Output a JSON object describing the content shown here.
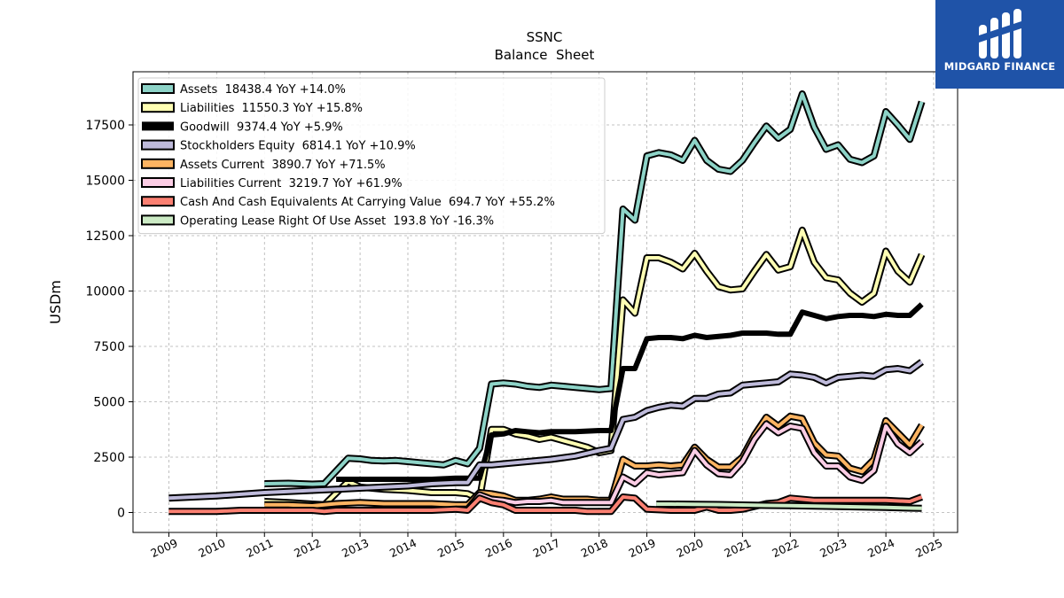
{
  "brand": {
    "name": "MIDGARD FINANCE",
    "bg_color": "#1f53a8"
  },
  "chart_data": {
    "type": "line",
    "title": "SSNC",
    "subtitle": "Balance  Sheet",
    "ylabel": "USDm",
    "xlabel": "",
    "xlim": [
      2008.25,
      2025.5
    ],
    "ylim": [
      -900,
      19900
    ],
    "x_ticks": [
      2009,
      2010,
      2011,
      2012,
      2013,
      2014,
      2015,
      2016,
      2017,
      2018,
      2019,
      2020,
      2021,
      2022,
      2023,
      2024,
      2025
    ],
    "x_tick_labels": [
      "2009",
      "2010",
      "2011",
      "2012",
      "2013",
      "2014",
      "2015",
      "2016",
      "2017",
      "2018",
      "2019",
      "2020",
      "2021",
      "2022",
      "2023",
      "2024",
      "2025"
    ],
    "y_ticks": [
      0,
      2500,
      5000,
      7500,
      10000,
      12500,
      15000,
      17500
    ],
    "y_tick_labels": [
      "0",
      "2500",
      "5000",
      "7500",
      "10000",
      "12500",
      "15000",
      "17500"
    ],
    "grid": true,
    "legend_position": "top-left",
    "series": [
      {
        "name": "Assets  18438.4 YoY +14.0%",
        "color": "#8dd3c7",
        "width": 4,
        "x": [
          2011.0,
          2011.5,
          2012.0,
          2012.25,
          2012.75,
          2013.0,
          2013.25,
          2013.5,
          2013.75,
          2014.0,
          2014.25,
          2014.5,
          2014.75,
          2015.0,
          2015.25,
          2015.5,
          2015.75,
          2016.0,
          2016.25,
          2016.5,
          2016.75,
          2017.0,
          2017.25,
          2017.5,
          2017.75,
          2018.0,
          2018.25,
          2018.5,
          2018.75,
          2019.0,
          2019.25,
          2019.5,
          2019.75,
          2020.0,
          2020.25,
          2020.5,
          2020.75,
          2021.0,
          2021.25,
          2021.5,
          2021.75,
          2022.0,
          2022.25,
          2022.5,
          2022.75,
          2023.0,
          2023.25,
          2023.5,
          2023.75,
          2024.0,
          2024.25,
          2024.5,
          2024.75
        ],
        "y": [
          1300,
          1320,
          1280,
          1300,
          2450,
          2420,
          2350,
          2330,
          2350,
          2300,
          2250,
          2200,
          2150,
          2350,
          2200,
          2900,
          5800,
          5850,
          5800,
          5700,
          5650,
          5750,
          5700,
          5650,
          5600,
          5550,
          5600,
          13700,
          13200,
          16100,
          16250,
          16150,
          15900,
          16800,
          15900,
          15500,
          15400,
          15900,
          16700,
          17450,
          16900,
          17300,
          18900,
          17400,
          16400,
          16600,
          15950,
          15800,
          16100,
          18100,
          17500,
          16850,
          18550
        ]
      },
      {
        "name": "Liabilities  11550.3 YoY +15.8%",
        "color": "#ffffb3",
        "width": 4,
        "x": [
          2011.0,
          2011.5,
          2012.0,
          2012.25,
          2012.75,
          2013.0,
          2013.5,
          2014.0,
          2014.5,
          2015.0,
          2015.25,
          2015.5,
          2015.75,
          2016.0,
          2016.25,
          2016.5,
          2016.75,
          2017.0,
          2017.25,
          2017.5,
          2017.75,
          2018.0,
          2018.25,
          2018.5,
          2018.75,
          2019.0,
          2019.25,
          2019.5,
          2019.75,
          2020.0,
          2020.25,
          2020.5,
          2020.75,
          2021.0,
          2021.25,
          2021.5,
          2021.75,
          2022.0,
          2022.25,
          2022.5,
          2022.75,
          2023.0,
          2023.25,
          2023.5,
          2023.75,
          2024.0,
          2024.25,
          2024.5,
          2024.75
        ],
        "y": [
          500,
          450,
          380,
          350,
          1400,
          1150,
          1050,
          1000,
          900,
          900,
          850,
          600,
          3750,
          3750,
          3550,
          3450,
          3300,
          3400,
          3250,
          3100,
          2950,
          2700,
          2800,
          9600,
          9000,
          11500,
          11500,
          11300,
          11000,
          11700,
          10900,
          10200,
          10050,
          10100,
          10900,
          11650,
          10950,
          11100,
          12750,
          11300,
          10600,
          10500,
          9900,
          9500,
          9900,
          11800,
          10900,
          10400,
          11650
        ]
      },
      {
        "name": "Goodwill  9374.4 YoY +5.9%",
        "color": "#000000",
        "width": 6,
        "x": [
          2012.5,
          2013.0,
          2013.5,
          2014.0,
          2014.5,
          2015.0,
          2015.25,
          2015.5,
          2015.75,
          2016.0,
          2016.25,
          2016.5,
          2016.75,
          2017.0,
          2017.5,
          2018.0,
          2018.25,
          2018.5,
          2018.75,
          2019.0,
          2019.25,
          2019.5,
          2019.75,
          2020.0,
          2020.25,
          2020.5,
          2020.75,
          2021.0,
          2021.25,
          2021.5,
          2021.75,
          2022.0,
          2022.25,
          2022.5,
          2022.75,
          2023.0,
          2023.25,
          2023.5,
          2023.75,
          2024.0,
          2024.25,
          2024.5,
          2024.75
        ],
        "y": [
          1500,
          1500,
          1500,
          1500,
          1500,
          1550,
          1550,
          1550,
          3500,
          3550,
          3700,
          3650,
          3600,
          3650,
          3650,
          3700,
          3700,
          6500,
          6500,
          7850,
          7900,
          7900,
          7850,
          8000,
          7900,
          7950,
          8000,
          8100,
          8100,
          8100,
          8050,
          8050,
          9050,
          8900,
          8750,
          8850,
          8900,
          8900,
          8850,
          8950,
          8900,
          8900,
          9400
        ]
      },
      {
        "name": "Stockholders Equity  6814.1 YoY +10.9%",
        "color": "#bebada",
        "width": 4,
        "x": [
          2009.0,
          2010.0,
          2011.0,
          2011.5,
          2012.0,
          2012.5,
          2013.0,
          2013.5,
          2014.0,
          2014.5,
          2015.0,
          2015.25,
          2015.5,
          2015.75,
          2016.0,
          2016.5,
          2017.0,
          2017.5,
          2018.0,
          2018.25,
          2018.5,
          2018.75,
          2019.0,
          2019.25,
          2019.5,
          2019.75,
          2020.0,
          2020.25,
          2020.5,
          2020.75,
          2021.0,
          2021.25,
          2021.5,
          2021.75,
          2022.0,
          2022.25,
          2022.5,
          2022.75,
          2023.0,
          2023.25,
          2023.5,
          2023.75,
          2024.0,
          2024.25,
          2024.5,
          2024.75
        ],
        "y": [
          650,
          750,
          900,
          950,
          1000,
          1050,
          1100,
          1150,
          1200,
          1300,
          1350,
          1350,
          2150,
          2150,
          2200,
          2300,
          2400,
          2550,
          2800,
          2900,
          4200,
          4300,
          4600,
          4750,
          4850,
          4800,
          5150,
          5150,
          5350,
          5400,
          5750,
          5800,
          5850,
          5900,
          6250,
          6200,
          6100,
          5850,
          6100,
          6150,
          6200,
          6150,
          6450,
          6500,
          6400,
          6800
        ]
      },
      {
        "name": "Assets Current  3890.7 YoY +71.5%",
        "color": "#fdb462",
        "width": 4,
        "x": [
          2011.0,
          2011.5,
          2012.0,
          2012.5,
          2013.0,
          2013.5,
          2014.0,
          2014.5,
          2015.0,
          2015.25,
          2015.5,
          2015.75,
          2016.0,
          2016.25,
          2016.5,
          2016.75,
          2017.0,
          2017.25,
          2017.5,
          2017.75,
          2018.0,
          2018.25,
          2018.5,
          2018.75,
          2019.0,
          2019.25,
          2019.5,
          2019.75,
          2020.0,
          2020.25,
          2020.5,
          2020.75,
          2021.0,
          2021.25,
          2021.5,
          2021.75,
          2022.0,
          2022.25,
          2022.5,
          2022.75,
          2023.0,
          2023.25,
          2023.5,
          2023.75,
          2024.0,
          2024.25,
          2024.5,
          2024.75
        ],
        "y": [
          350,
          350,
          300,
          400,
          450,
          400,
          400,
          400,
          350,
          350,
          900,
          850,
          750,
          550,
          550,
          600,
          700,
          600,
          600,
          600,
          550,
          550,
          2400,
          2100,
          2100,
          2150,
          2100,
          2150,
          2950,
          2400,
          2050,
          2050,
          2500,
          3500,
          4300,
          3900,
          4350,
          4250,
          3150,
          2600,
          2550,
          2000,
          1850,
          2400,
          4150,
          3600,
          3050,
          3950
        ]
      },
      {
        "name": "Liabilities Current  3219.7 YoY +61.9%",
        "color": "#fccde5",
        "width": 4,
        "x": [
          2015.0,
          2015.25,
          2015.5,
          2015.75,
          2016.0,
          2016.25,
          2016.5,
          2016.75,
          2017.0,
          2017.25,
          2017.5,
          2017.75,
          2018.0,
          2018.25,
          2018.5,
          2018.75,
          2019.0,
          2019.25,
          2019.5,
          2019.75,
          2020.0,
          2020.25,
          2020.5,
          2020.75,
          2021.0,
          2021.25,
          2021.5,
          2021.75,
          2022.0,
          2022.25,
          2022.5,
          2022.75,
          2023.0,
          2023.25,
          2023.5,
          2023.75,
          2024.0,
          2024.25,
          2024.5,
          2024.75
        ],
        "y": [
          150,
          150,
          800,
          600,
          550,
          450,
          500,
          500,
          550,
          450,
          450,
          450,
          450,
          450,
          1600,
          1300,
          1800,
          1700,
          1750,
          1800,
          2800,
          2150,
          1750,
          1700,
          2300,
          3300,
          4000,
          3600,
          3900,
          3800,
          2700,
          2100,
          2100,
          1600,
          1450,
          1900,
          3900,
          3100,
          2700,
          3200
        ]
      },
      {
        "name": "Cash And Cash Equivalents At Carrying Value  694.7 YoY +55.2%",
        "color": "#fb8072",
        "width": 4,
        "x": [
          2009.0,
          2010.0,
          2010.5,
          2011.0,
          2011.5,
          2012.0,
          2012.25,
          2012.5,
          2012.75,
          2013.0,
          2013.5,
          2014.0,
          2014.5,
          2015.0,
          2015.25,
          2015.5,
          2015.75,
          2016.0,
          2016.25,
          2016.5,
          2016.75,
          2017.0,
          2017.5,
          2017.75,
          2018.0,
          2018.25,
          2018.5,
          2018.75,
          2019.0,
          2019.5,
          2019.75,
          2020.0,
          2020.25,
          2020.5,
          2020.75,
          2021.0,
          2021.5,
          2021.75,
          2022.0,
          2022.5,
          2023.0,
          2023.5,
          2024.0,
          2024.5,
          2024.75
        ],
        "y": [
          50,
          50,
          100,
          100,
          100,
          100,
          50,
          100,
          100,
          100,
          100,
          100,
          100,
          150,
          100,
          650,
          450,
          350,
          100,
          100,
          100,
          100,
          100,
          50,
          50,
          50,
          700,
          650,
          150,
          100,
          100,
          100,
          250,
          100,
          100,
          150,
          400,
          450,
          650,
          550,
          550,
          550,
          550,
          500,
          700
        ]
      },
      {
        "name": "Operating Lease Right Of Use Asset  193.8 YoY -16.3%",
        "color": "#ccebc5",
        "width": 4,
        "x": [
          2019.2,
          2019.5,
          2020.0,
          2020.5,
          2021.0,
          2021.5,
          2022.0,
          2022.5,
          2023.0,
          2023.5,
          2024.0,
          2024.5,
          2024.75
        ],
        "y": [
          380,
          380,
          370,
          360,
          340,
          320,
          310,
          290,
          270,
          250,
          230,
          200,
          190
        ]
      }
    ]
  }
}
